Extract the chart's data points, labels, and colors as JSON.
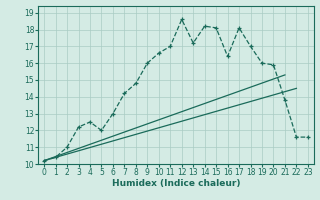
{
  "xlabel": "Humidex (Indice chaleur)",
  "ylabel": "",
  "bg_color": "#d4ebe4",
  "grid_color": "#aaccc4",
  "line_color": "#1a6b5a",
  "xlim": [
    -0.5,
    23.5
  ],
  "ylim": [
    10,
    19.4
  ],
  "xticks": [
    0,
    1,
    2,
    3,
    4,
    5,
    6,
    7,
    8,
    9,
    10,
    11,
    12,
    13,
    14,
    15,
    16,
    17,
    18,
    19,
    20,
    21,
    22,
    23
  ],
  "yticks": [
    10,
    11,
    12,
    13,
    14,
    15,
    16,
    17,
    18,
    19
  ],
  "main_x": [
    0,
    1,
    2,
    3,
    4,
    5,
    6,
    7,
    8,
    9,
    10,
    11,
    12,
    13,
    14,
    15,
    16,
    17,
    18,
    19,
    20,
    21,
    22,
    23
  ],
  "main_y": [
    10.2,
    10.4,
    11.0,
    12.2,
    12.5,
    12.0,
    13.0,
    14.2,
    14.8,
    16.0,
    16.6,
    17.0,
    18.6,
    17.2,
    18.2,
    18.1,
    16.4,
    18.1,
    17.0,
    16.0,
    15.9,
    13.8,
    11.6,
    11.6
  ],
  "line1_x": [
    0,
    21
  ],
  "line1_y": [
    10.2,
    15.3
  ],
  "line2_x": [
    0,
    22
  ],
  "line2_y": [
    10.2,
    14.5
  ]
}
